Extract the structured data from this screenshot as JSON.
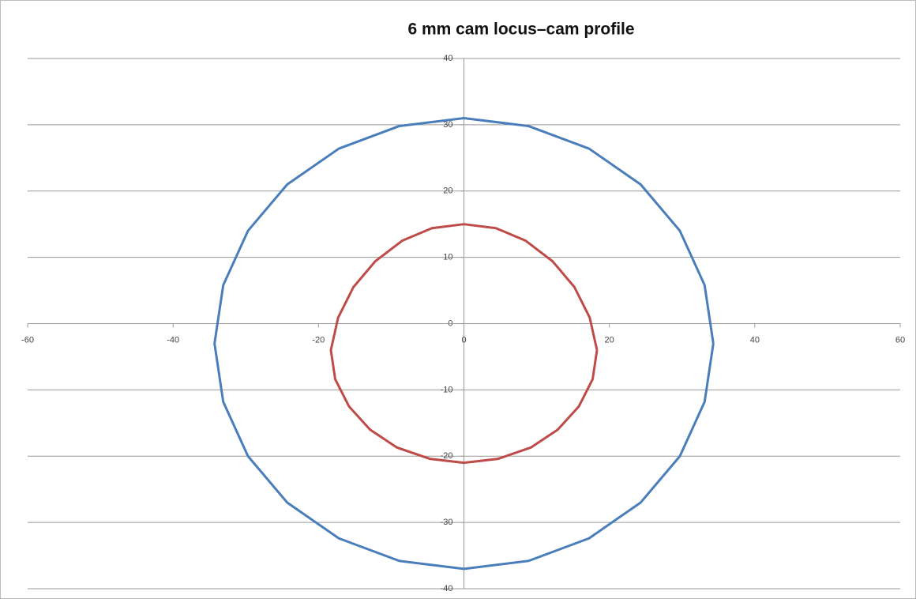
{
  "chart_data": {
    "type": "line",
    "title": "6 mm cam locus–cam profile",
    "xlim": [
      -60,
      60
    ],
    "xticks": [
      -60,
      -40,
      -20,
      0,
      20,
      40,
      60
    ],
    "ylim": [
      -40,
      40
    ],
    "yticks": [
      -40,
      -30,
      -20,
      -10,
      0,
      10,
      20,
      30,
      40
    ],
    "grid": true,
    "series": [
      {
        "color": "#4a7ebb",
        "x": [
          34.3,
          33.1,
          29.7,
          24.3,
          17.2,
          8.9,
          0,
          -8.9,
          -17.2,
          -24.3,
          -29.7,
          -33.1,
          -34.3,
          -33.1,
          -29.7,
          -24.3,
          -17.2,
          -8.9,
          0,
          8.9,
          17.2,
          24.3,
          29.7,
          33.1,
          34.3
        ],
        "values": [
          -3,
          5.8,
          14,
          21,
          26.4,
          29.8,
          31,
          29.8,
          26.4,
          21,
          14,
          5.8,
          -3,
          -11.8,
          -20,
          -27,
          -32.4,
          -35.8,
          -37,
          -35.8,
          -32.4,
          -27,
          -20,
          -11.8,
          -3
        ]
      },
      {
        "color": "#be4b48",
        "x": [
          18.3,
          17.3,
          15.2,
          12.2,
          8.5,
          4.4,
          0,
          -4.4,
          -8.5,
          -12.2,
          -15.2,
          -17.3,
          -18.3,
          -17.7,
          -15.8,
          -12.9,
          -9.2,
          -4.7,
          0,
          4.7,
          9.2,
          12.9,
          15.8,
          17.7,
          18.3
        ],
        "values": [
          -4,
          0.9,
          5.5,
          9.4,
          12.5,
          14.4,
          15,
          14.4,
          12.5,
          9.4,
          5.5,
          0.9,
          -4,
          -8.4,
          -12.5,
          -16,
          -18.7,
          -20.4,
          -21,
          -20.4,
          -18.7,
          -16,
          -12.5,
          -8.4,
          -4
        ]
      }
    ]
  }
}
